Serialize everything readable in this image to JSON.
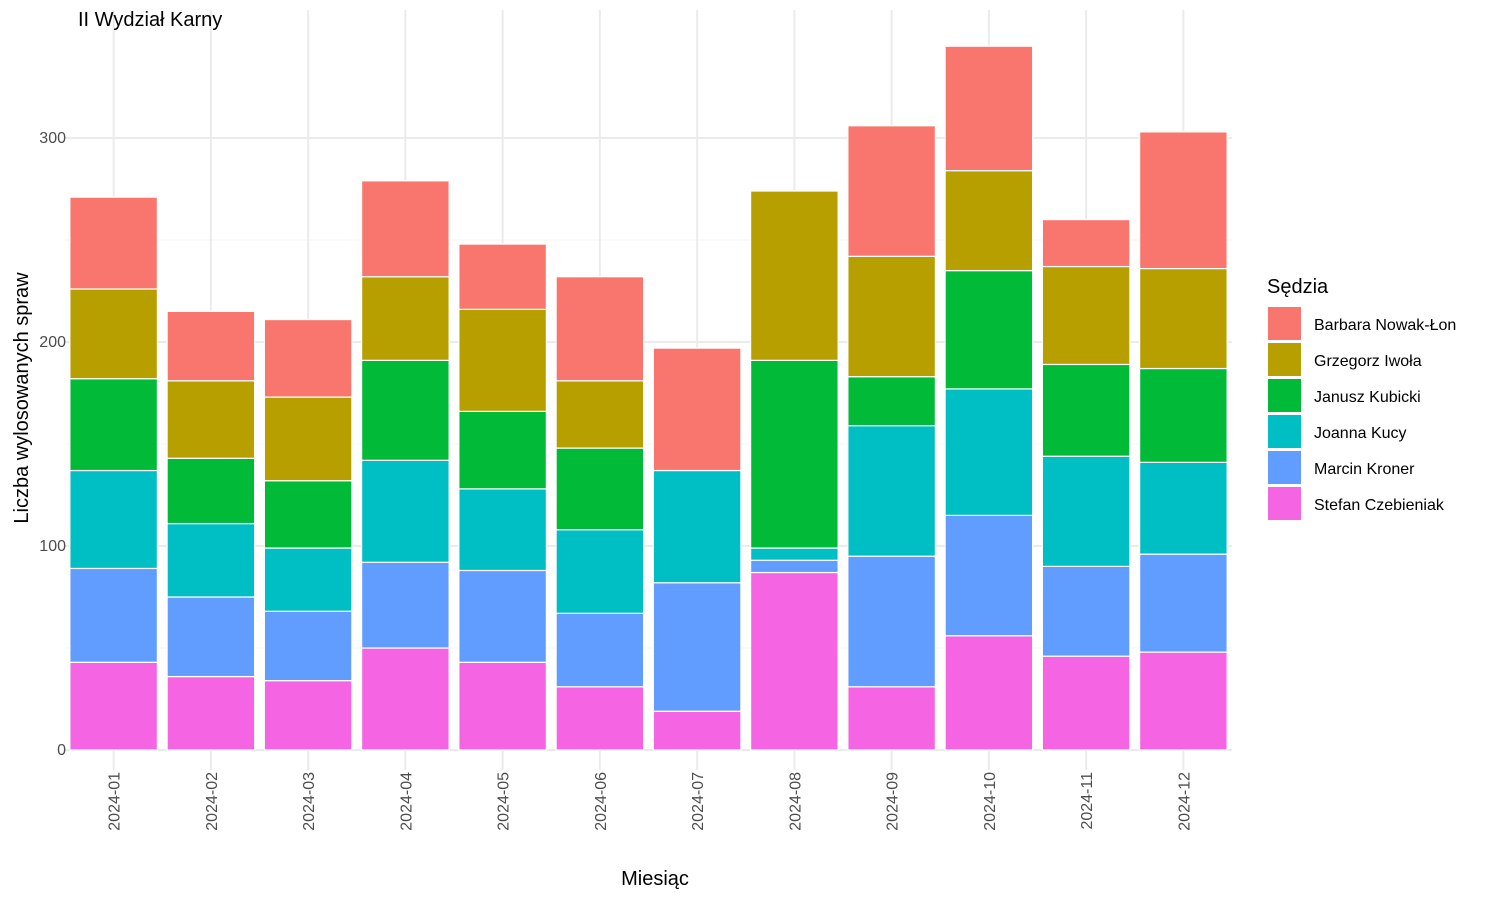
{
  "chart_data": {
    "type": "bar",
    "stacked": true,
    "title": "II Wydział Karny",
    "xlabel": "Miesiąc",
    "ylabel": "Liczba wylosowanych spraw",
    "ylim": [
      0,
      350
    ],
    "yticks": [
      0,
      100,
      200,
      300
    ],
    "grid": true,
    "legend_title": "Sędzia",
    "legend_position": "right",
    "categories": [
      "2024-01",
      "2024-02",
      "2024-03",
      "2024-04",
      "2024-05",
      "2024-06",
      "2024-07",
      "2024-08",
      "2024-09",
      "2024-10",
      "2024-11",
      "2024-12"
    ],
    "series": [
      {
        "name": "Barbara Nowak-Łon",
        "color": "#F8766D",
        "values": [
          45,
          34,
          38,
          47,
          32,
          51,
          60,
          0,
          64,
          61,
          23,
          67
        ]
      },
      {
        "name": "Grzegorz Iwoła",
        "color": "#B79F00",
        "values": [
          44,
          38,
          41,
          41,
          50,
          33,
          0,
          83,
          59,
          49,
          48,
          49
        ]
      },
      {
        "name": "Janusz Kubicki",
        "color": "#00BA38",
        "values": [
          45,
          32,
          33,
          49,
          38,
          40,
          0,
          92,
          24,
          58,
          45,
          46
        ]
      },
      {
        "name": "Joanna Kucy",
        "color": "#00BFC4",
        "values": [
          48,
          36,
          31,
          50,
          40,
          41,
          55,
          6,
          64,
          62,
          54,
          45
        ]
      },
      {
        "name": "Marcin Kroner",
        "color": "#619CFF",
        "values": [
          46,
          39,
          34,
          42,
          45,
          36,
          63,
          6,
          64,
          59,
          44,
          48
        ]
      },
      {
        "name": "Stefan Czebieniak",
        "color": "#F564E3",
        "values": [
          43,
          36,
          34,
          50,
          43,
          31,
          19,
          87,
          31,
          56,
          46,
          48
        ]
      }
    ]
  }
}
